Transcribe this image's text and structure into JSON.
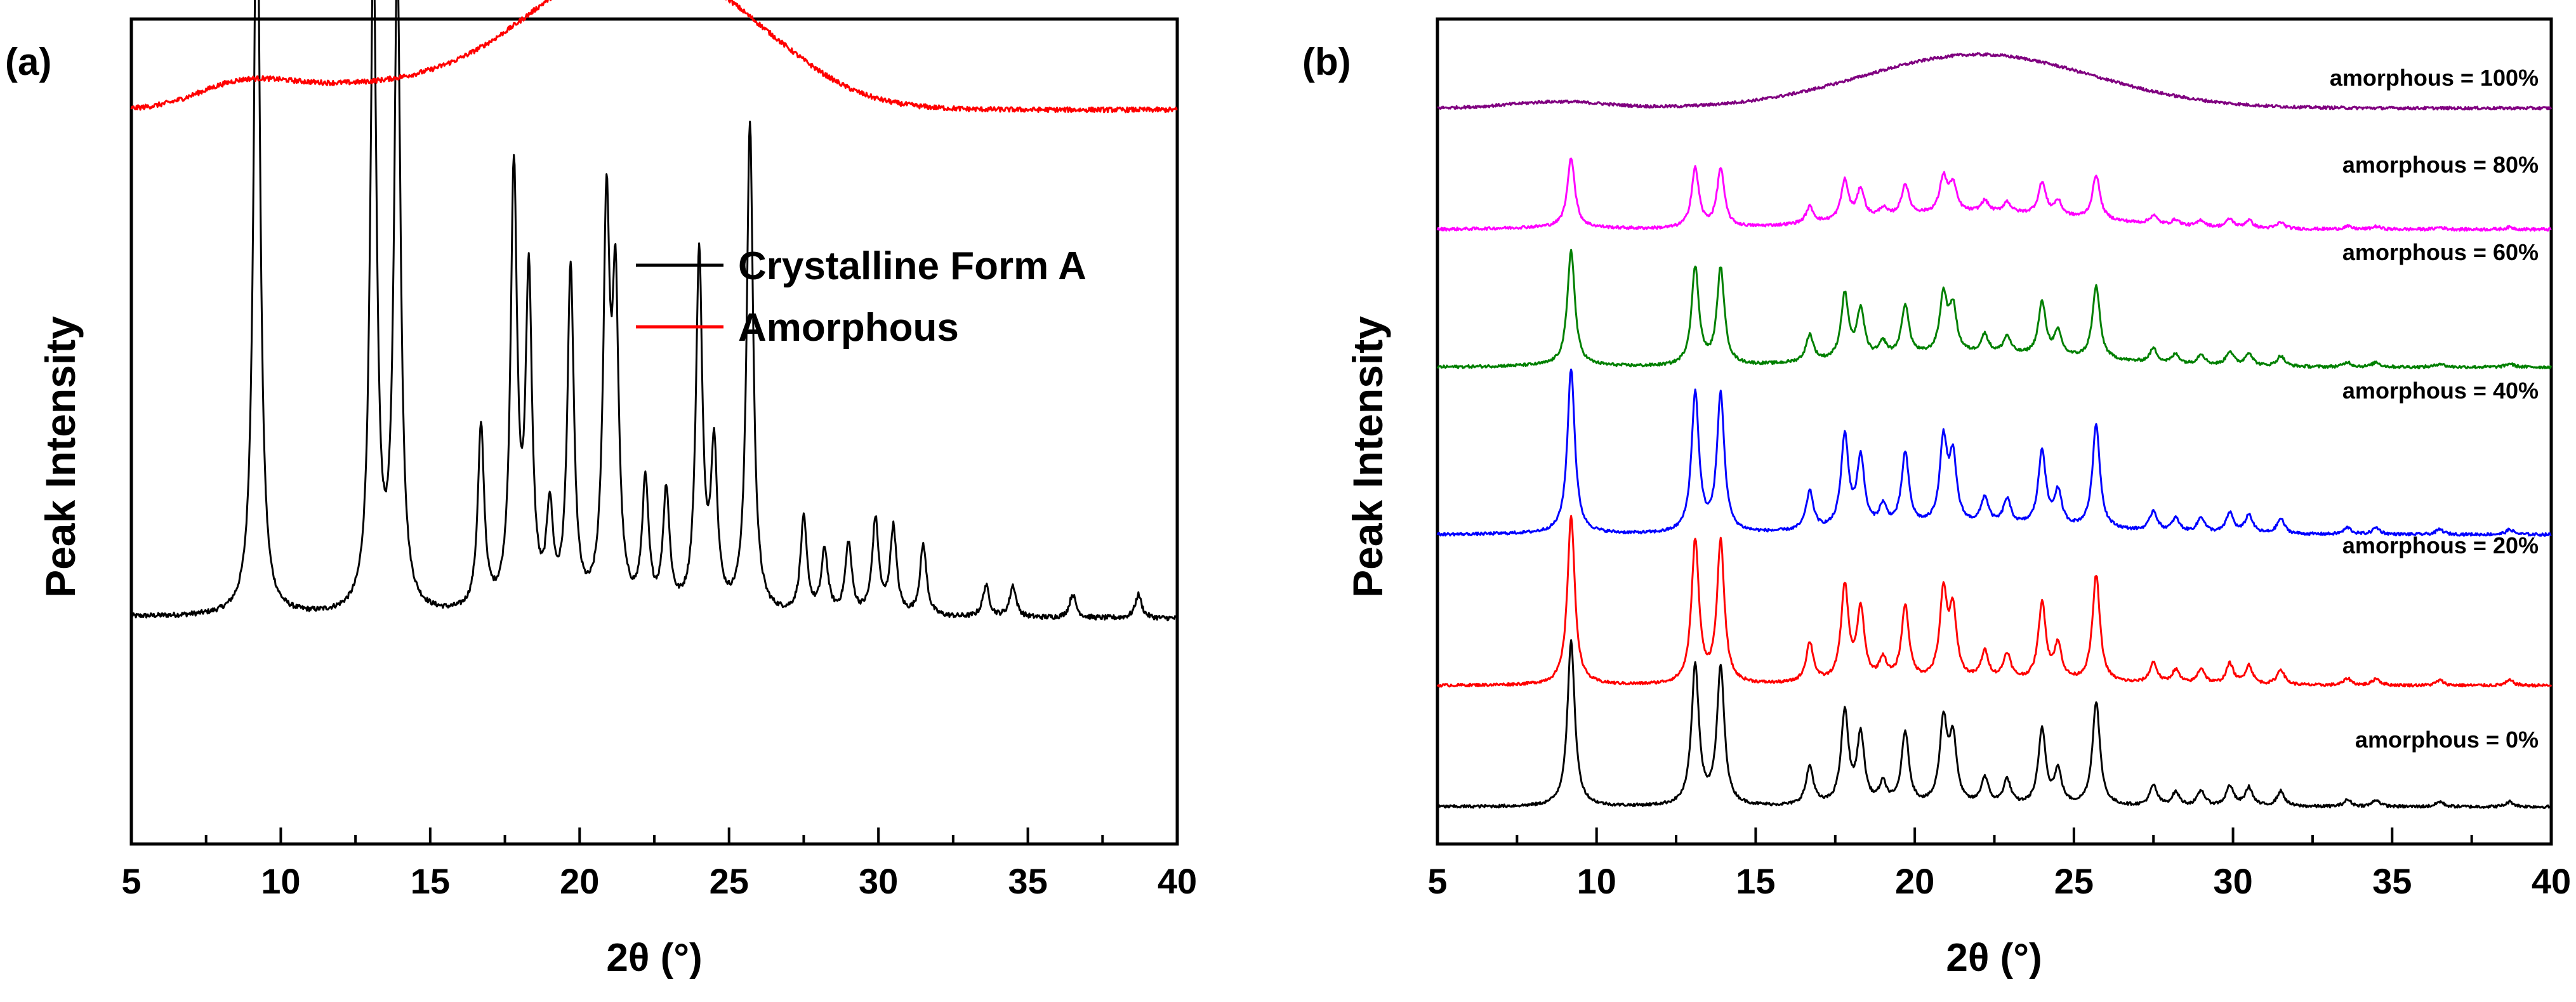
{
  "chart_data": [
    {
      "panel_label": "(a)",
      "type": "line",
      "title": "",
      "xlabel": "2θ (°)",
      "ylabel": "Peak Intensity",
      "xlim": [
        5,
        40
      ],
      "xticks": [
        5,
        10,
        15,
        20,
        25,
        30,
        35,
        40
      ],
      "legend_position": "top-right",
      "series": [
        {
          "name": "Crystalline Form A",
          "color": "#000000",
          "baseline": 0.275,
          "peaks": [
            [
              9.2,
              0.98
            ],
            [
              13.1,
              0.83
            ],
            [
              13.9,
              0.82
            ],
            [
              16.7,
              0.23
            ],
            [
              17.8,
              0.55
            ],
            [
              18.3,
              0.41
            ],
            [
              19.0,
              0.12
            ],
            [
              19.7,
              0.43
            ],
            [
              20.9,
              0.49
            ],
            [
              21.2,
              0.38
            ],
            [
              22.2,
              0.16
            ],
            [
              22.9,
              0.15
            ],
            [
              24.0,
              0.45
            ],
            [
              24.5,
              0.2
            ],
            [
              25.7,
              0.62
            ],
            [
              27.5,
              0.12
            ],
            [
              28.2,
              0.08
            ],
            [
              29.0,
              0.09
            ],
            [
              29.9,
              0.12
            ],
            [
              30.5,
              0.11
            ],
            [
              31.5,
              0.09
            ],
            [
              33.6,
              0.04
            ],
            [
              34.5,
              0.04
            ],
            [
              36.5,
              0.03
            ],
            [
              38.7,
              0.03
            ]
          ],
          "stroke": "#000000"
        },
        {
          "name": "Amorphous",
          "color": "#ff0000",
          "baseline": 0.92,
          "halo": {
            "center": 22.0,
            "height": 0.155,
            "width": 3.4
          },
          "shoulder": {
            "center": 8.6,
            "height": 0.012,
            "width": 1.5
          }
        }
      ]
    },
    {
      "panel_label": "(b)",
      "type": "line",
      "title": "",
      "xlabel": "2θ (°)",
      "ylabel": "Peak Intensity",
      "xlim": [
        5,
        40
      ],
      "xticks": [
        5,
        10,
        15,
        20,
        25,
        30,
        35,
        40
      ],
      "series": [
        {
          "name": "amorphous = 100%",
          "color": "#800080",
          "baseline": 0.892,
          "crystal_scale": 0.0,
          "halo_scale": 0.065
        },
        {
          "name": "amorphous = 80%",
          "color": "#ff00ff",
          "baseline": 0.745,
          "crystal_scale": 0.085,
          "halo_scale": 0.02
        },
        {
          "name": "amorphous = 60%",
          "color": "#008000",
          "baseline": 0.578,
          "crystal_scale": 0.14,
          "halo_scale": 0.015
        },
        {
          "name": "amorphous = 40%",
          "color": "#0000ff",
          "baseline": 0.375,
          "crystal_scale": 0.2,
          "halo_scale": 0.01
        },
        {
          "name": "amorphous = 20%",
          "color": "#ff0000",
          "baseline": 0.192,
          "crystal_scale": 0.205,
          "halo_scale": 0.005
        },
        {
          "name": "amorphous = 0%",
          "color": "#000000",
          "baseline": 0.045,
          "crystal_scale": 0.2,
          "halo_scale": 0.0
        }
      ]
    }
  ]
}
